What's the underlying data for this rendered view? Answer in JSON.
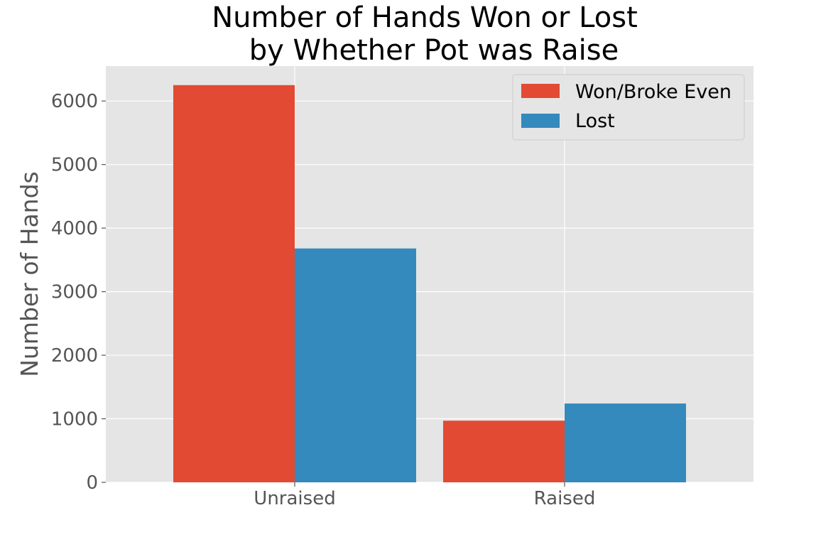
{
  "chart_data": {
    "type": "bar",
    "title_lines": [
      "Number of Hands Won or Lost",
      "by Whether Pot was Raise"
    ],
    "xlabel": "",
    "ylabel": "Number of Hands",
    "categories": [
      "Unraised",
      "Raised"
    ],
    "series": [
      {
        "name": "Won/Broke Even",
        "color": "#E24A33",
        "values": [
          6250,
          970
        ]
      },
      {
        "name": "Lost",
        "color": "#348ABD",
        "values": [
          3680,
          1240
        ]
      }
    ],
    "ylim": [
      0,
      6550
    ],
    "yticks": [
      0,
      1000,
      2000,
      3000,
      4000,
      5000,
      6000
    ],
    "grid": true,
    "legend_position": "top-right",
    "style": {
      "background": "#E5E5E5",
      "grid_color": "#FFFFFF"
    }
  }
}
